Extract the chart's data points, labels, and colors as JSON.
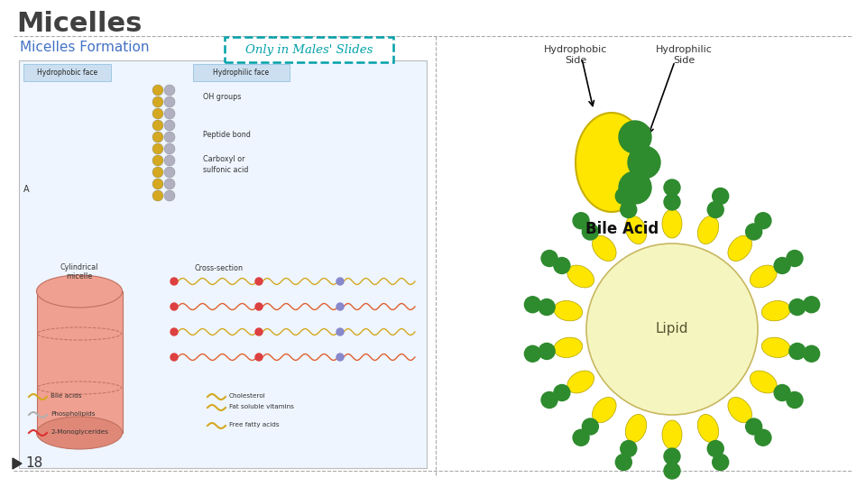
{
  "title": "Micelles",
  "title_fontsize": 22,
  "bg_color": "#ffffff",
  "subtitle": "Micelles Formation",
  "subtitle_color": "#4472C4",
  "subtitle_fontsize": 11,
  "only_males_text": "Only in Males' Slides",
  "only_males_color": "#00A0A8",
  "page_number": "18",
  "divider_color": "#AAAAAA",
  "bile_acid_label": "Bile Acid",
  "lipid_label": "Lipid",
  "hydrophobic_side": "Hydrophobic\nSide",
  "hydrophilic_side": "Hydrophilic\nSide",
  "yellow_color": "#FFE600",
  "green_color": "#2E8B2E",
  "lipid_inner_color": "#F5F5C0",
  "lipid_border_color": "#C8B860",
  "title_color": "#404040",
  "label_color": "#333333",
  "box_bg": "#EEF5FF",
  "box_border": "#BBBBBB",
  "header_bg": "#CCDFF0",
  "header_border": "#88BBDD",
  "cylinder_fill": "#F0A090",
  "cylinder_edge": "#C07060",
  "molecule_gold": "#D4A820",
  "molecule_grey": "#B0B0C0"
}
